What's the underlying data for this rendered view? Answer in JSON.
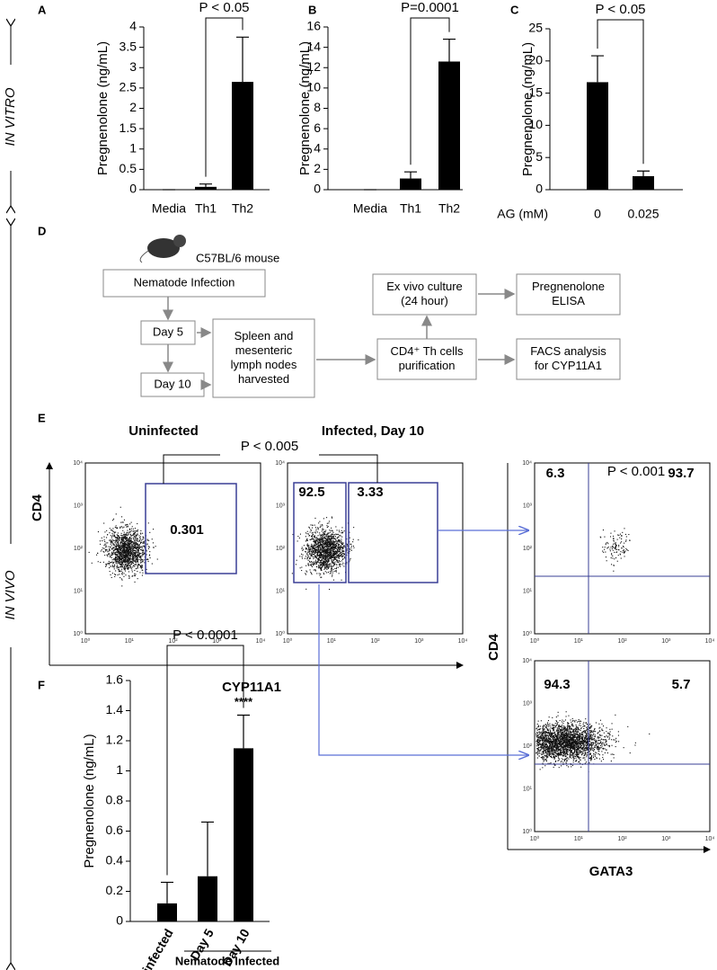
{
  "side_labels": [
    "IN VITRO",
    "IN VIVO"
  ],
  "chart_data": [
    {
      "panel": "A",
      "type": "bar",
      "y_label": "Pregnenolone (ng/mL)",
      "categories": [
        "Media",
        "Th1",
        "Th2"
      ],
      "values": [
        0,
        0.07,
        2.65
      ],
      "errors": [
        0,
        0.07,
        1.1
      ],
      "color": "#000000",
      "ylim": [
        0,
        4
      ],
      "yticks": [
        0,
        0.5,
        1,
        1.5,
        2,
        2.5,
        3,
        3.5,
        4
      ],
      "annotation": "P < 0.05"
    },
    {
      "panel": "B",
      "type": "bar",
      "y_label": "Pregnenolone (ng/mL)",
      "categories": [
        "Media",
        "Th1",
        "Th2"
      ],
      "values": [
        0,
        1.1,
        12.6
      ],
      "errors": [
        0,
        0.65,
        2.2
      ],
      "color": "#000000",
      "ylim": [
        0,
        16
      ],
      "yticks": [
        0,
        2,
        4,
        6,
        8,
        10,
        12,
        14,
        16
      ],
      "annotation": "P=0.0001"
    },
    {
      "panel": "C",
      "type": "bar",
      "y_label": "Pregnenolone (ng/mL)",
      "x_label": "AG (mM)",
      "categories": [
        "0",
        "0.025"
      ],
      "values": [
        16.7,
        2.1
      ],
      "errors": [
        4.1,
        0.8
      ],
      "color": "#000000",
      "ylim": [
        0,
        25
      ],
      "yticks": [
        0,
        5,
        10,
        15,
        20,
        25
      ],
      "annotation": "P < 0.05"
    },
    {
      "panel": "F",
      "type": "bar",
      "y_label": "Pregnenolone (ng/mL)",
      "categories": [
        "Uninfected",
        "Day 5",
        "Day 10"
      ],
      "values": [
        0.12,
        0.3,
        1.15
      ],
      "errors": [
        0.14,
        0.36,
        0.22
      ],
      "color": "#000000",
      "ylim": [
        0,
        1.6
      ],
      "yticks": [
        0,
        0.2,
        0.4,
        0.6,
        0.8,
        1,
        1.2,
        1.4,
        1.6
      ],
      "annotation": "P < 0.0001",
      "significance": "****",
      "group_label": "Nematode Infected"
    }
  ],
  "diagram": {
    "panel": "D",
    "mouse": "C57BL/6 mouse",
    "nodes": [
      {
        "lines": [
          "Nematode Infection"
        ]
      },
      {
        "lines": [
          "Day 5"
        ]
      },
      {
        "lines": [
          "Day 10"
        ]
      },
      {
        "lines": [
          "Spleen and",
          "mesenteric",
          "lymph nodes",
          "harvested"
        ]
      },
      {
        "lines": [
          "Ex vivo culture",
          "(24 hour)"
        ]
      },
      {
        "lines": [
          "CD4⁺ Th cells",
          "purification"
        ]
      },
      {
        "lines": [
          "Pregnenolone",
          "ELISA"
        ]
      },
      {
        "lines": [
          "FACS analysis",
          "for CYP11A1"
        ]
      }
    ]
  },
  "flow": {
    "panel": "E",
    "titles": [
      "Uninfected",
      "Infected,  Day 10"
    ],
    "p_value": "P < 0.005",
    "x_label": "CYP11A1",
    "y_label": "CD4",
    "gates": [
      0.301,
      92.5,
      3.33
    ],
    "quadrant_p_value": "P < 0.001",
    "quadrant_x_label": "GATA3",
    "quadrant_y_label": "CD4",
    "quadrants_top": [
      6.3,
      93.7
    ],
    "quadrants_bottom": [
      94.3,
      5.7
    ],
    "log_ticks": [
      "10⁰",
      "10¹",
      "10²",
      "10³",
      "10⁴"
    ]
  }
}
